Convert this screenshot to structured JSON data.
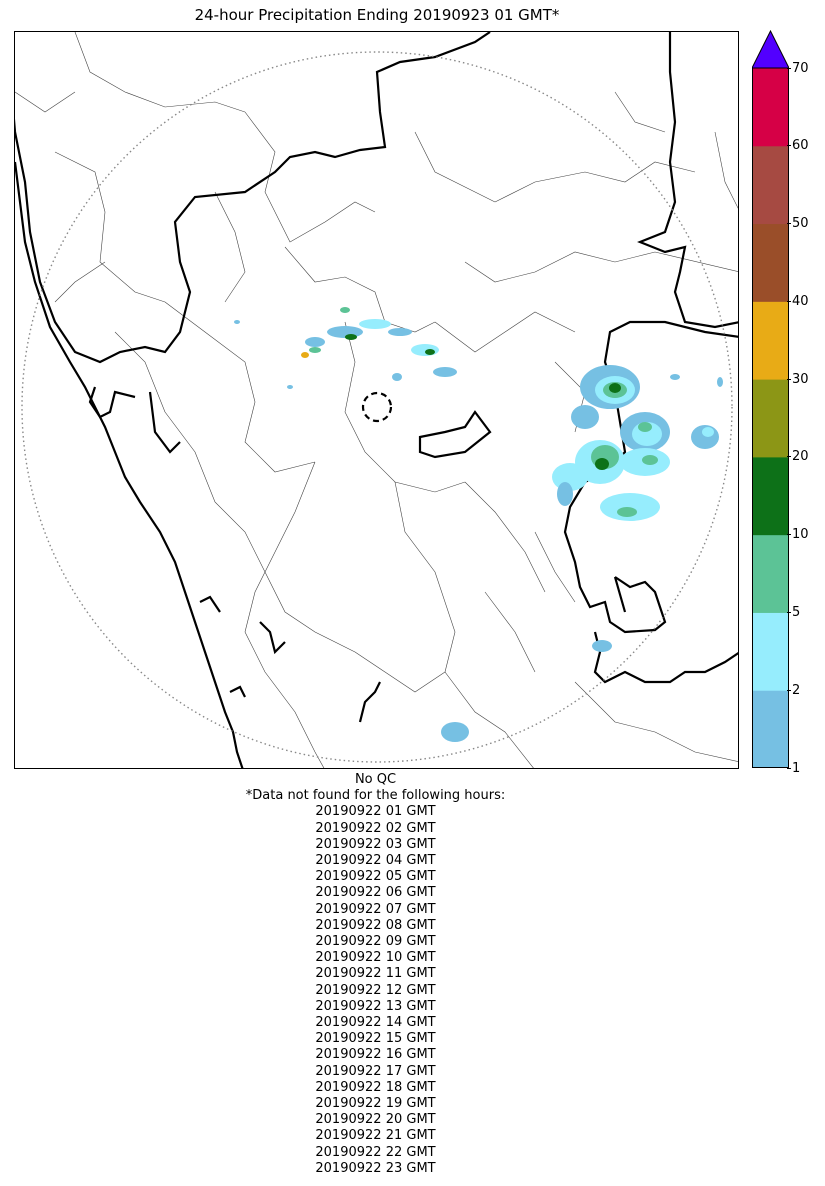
{
  "title": "24-hour Precipitation Ending 20190923 01 GMT*",
  "colorbar": {
    "levels": [
      1,
      2,
      5,
      10,
      20,
      30,
      40,
      50,
      60,
      70
    ],
    "labels": [
      "1",
      "2",
      "5",
      "10",
      "20",
      "30",
      "40",
      "50",
      "60",
      "70"
    ],
    "colors": [
      "#76c0e3",
      "#96edfd",
      "#5cc396",
      "#0d7118",
      "#8c9616",
      "#e8ab16",
      "#9a4e29",
      "#a64a42",
      "#d60046"
    ],
    "extend_color": "#5200ff",
    "extend": "max"
  },
  "map": {
    "range_ring": "dotted",
    "radar_site_marker": "dashed-circle",
    "borders": [
      "coastline",
      "state-boundary",
      "district-boundary"
    ]
  },
  "footer": {
    "qc_note": "No QC",
    "missing_heading": "*Data not found for the following hours:",
    "missing_hours": [
      "20190922 01 GMT",
      "20190922 02 GMT",
      "20190922 03 GMT",
      "20190922 04 GMT",
      "20190922 05 GMT",
      "20190922 06 GMT",
      "20190922 07 GMT",
      "20190922 08 GMT",
      "20190922 09 GMT",
      "20190922 10 GMT",
      "20190922 11 GMT",
      "20190922 12 GMT",
      "20190922 13 GMT",
      "20190922 14 GMT",
      "20190922 15 GMT",
      "20190922 16 GMT",
      "20190922 17 GMT",
      "20190922 18 GMT",
      "20190922 19 GMT",
      "20190922 20 GMT",
      "20190922 21 GMT",
      "20190922 22 GMT",
      "20190922 23 GMT"
    ]
  }
}
